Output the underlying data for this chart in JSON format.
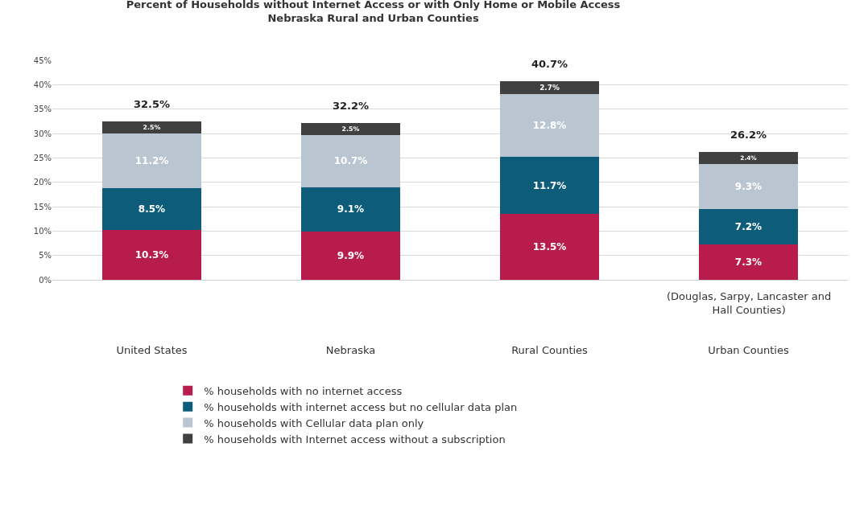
{
  "chart_data": {
    "type": "bar",
    "stacked": true,
    "title": "Percent of Households without Internet Access or with Only Home or Mobile Access",
    "subtitle": "Nebraska Rural and Urban Counties",
    "categories": [
      "United States",
      "Nebraska",
      "Rural Counties",
      "Urban Counties"
    ],
    "series": [
      {
        "name": "% households with no internet access",
        "color": "#b81c4c",
        "values": [
          10.3,
          9.9,
          13.5,
          7.3
        ],
        "value_labels": [
          "10.3%",
          "9.9%",
          "13.5%",
          "7.3%"
        ]
      },
      {
        "name": "% households with internet access but no cellular data plan",
        "color": "#0d5c7a",
        "values": [
          8.5,
          9.1,
          11.7,
          7.2
        ],
        "value_labels": [
          "8.5%",
          "9.1%",
          "11.7%",
          "7.2%"
        ]
      },
      {
        "name": "% households with Cellular data plan only",
        "color": "#b9c5d1",
        "values": [
          11.2,
          10.7,
          12.8,
          9.3
        ],
        "value_labels": [
          "11.2%",
          "10.7%",
          "12.8%",
          "9.3%"
        ]
      },
      {
        "name": "% households with Internet access without a subscription",
        "color": "#404040",
        "values": [
          2.5,
          2.5,
          2.7,
          2.4
        ],
        "value_labels": [
          "2.5%",
          "2.5%",
          "2.7%",
          "2.4%"
        ]
      }
    ],
    "totals": [
      "32.5%",
      "32.2%",
      "40.7%",
      "26.2%"
    ],
    "annotations": [
      "(Douglas, Sarpy, Lancaster and Hall Counties)"
    ],
    "ylim": [
      0,
      45
    ],
    "yticks": [
      {
        "value": 0,
        "label": "0%"
      },
      {
        "value": 5,
        "label": "5%"
      },
      {
        "value": 10,
        "label": "10%"
      },
      {
        "value": 15,
        "label": "15%"
      },
      {
        "value": 20,
        "label": "20%"
      },
      {
        "value": 25,
        "label": "25%"
      },
      {
        "value": 30,
        "label": "30%"
      },
      {
        "value": 35,
        "label": "35%"
      },
      {
        "value": 40,
        "label": "40%"
      },
      {
        "value": 45,
        "label": "45%"
      }
    ],
    "grid": "y",
    "legend": "bottom"
  }
}
